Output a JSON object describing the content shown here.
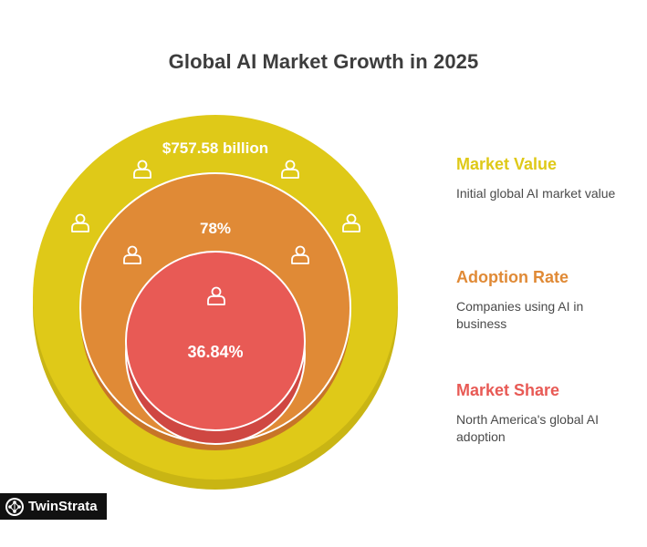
{
  "title": "Global AI Market Growth in 2025",
  "rings": [
    {
      "value_label": "$757.58 billion",
      "color": "#dfc918",
      "shadow_color": "#c9b514"
    },
    {
      "value_label": "78%",
      "color": "#e08a36",
      "shadow_color": "#c77428"
    },
    {
      "value_label": "36.84%",
      "color": "#e85a55",
      "shadow_color": "#cf4742"
    }
  ],
  "legend": [
    {
      "title": "Market Value",
      "description": "Initial global AI market value",
      "color": "#dfc918"
    },
    {
      "title": "Adoption Rate",
      "description": "Companies using AI in business",
      "color": "#e08a36"
    },
    {
      "title": "Market Share",
      "description": "North America's global AI adoption",
      "color": "#e85a55"
    }
  ],
  "icon_name": "person-icon",
  "logo": {
    "text": "TwinStrata",
    "icon": "brain-network-icon"
  }
}
